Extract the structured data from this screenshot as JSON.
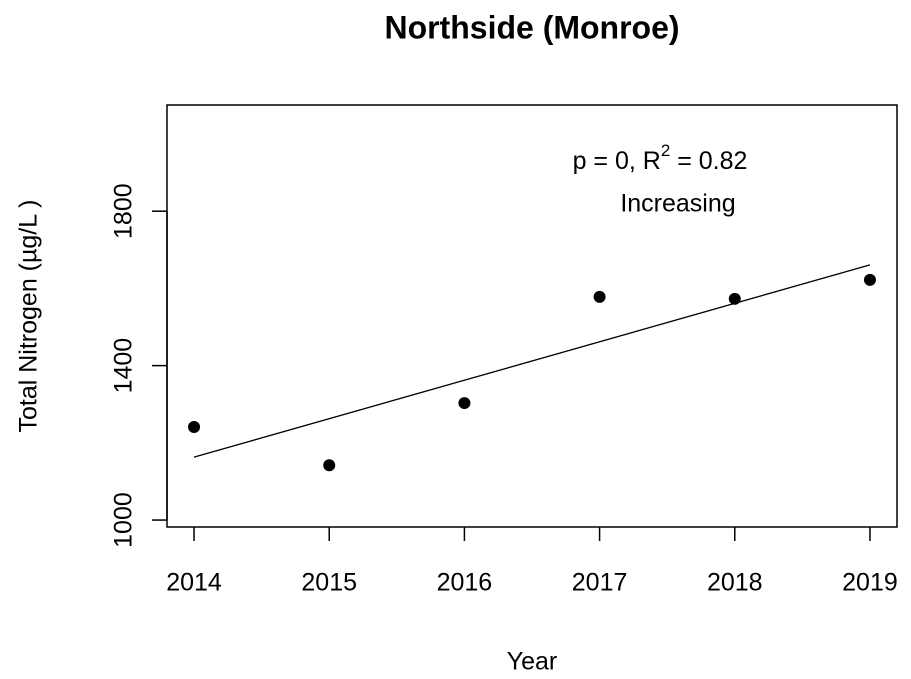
{
  "chart_data": {
    "type": "scatter",
    "title": "Northside (Monroe)",
    "x_label": "Year",
    "y_label": "Total Nitrogen (µg/L )",
    "x": [
      2014,
      2015,
      2016,
      2017,
      2018,
      2019
    ],
    "values": [
      1241,
      1142,
      1303,
      1578,
      1573,
      1622
    ],
    "color": "#000000",
    "trend": {
      "x": [
        2014,
        2019
      ],
      "values": [
        1163,
        1661
      ]
    },
    "annotation": {
      "prefix": "p = 0, R",
      "superscript": "2",
      "suffix": " = 0.82",
      "trend": "Increasing"
    },
    "xlim": [
      2013.8,
      2019.2
    ],
    "xticks": [
      2014,
      2015,
      2016,
      2017,
      2018,
      2019
    ],
    "ylim": [
      982,
      2075
    ],
    "yticks": [
      1000,
      1400,
      1800
    ],
    "grid": false
  }
}
